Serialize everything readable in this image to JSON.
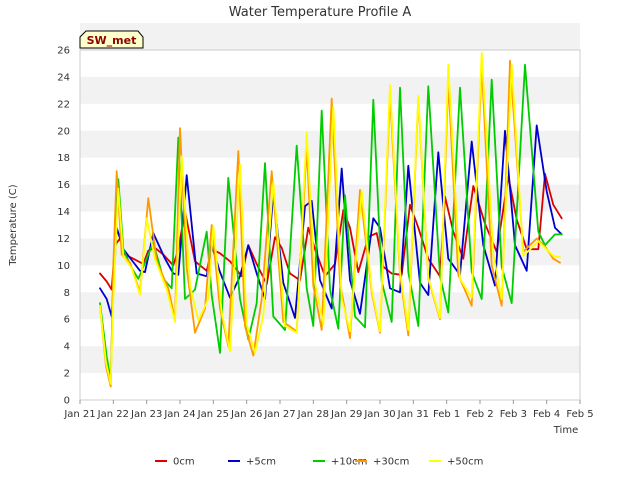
{
  "chart_data": {
    "type": "line",
    "title": "Water Temperature Profile A",
    "badge": "SW_met",
    "xlabel": "Time",
    "ylabel": "Temperature (C)",
    "ylim": [
      0,
      26
    ],
    "yticks": [
      0,
      2,
      4,
      6,
      8,
      10,
      12,
      14,
      16,
      18,
      20,
      22,
      24,
      26
    ],
    "xlim": [
      0,
      15
    ],
    "xticks": [
      {
        "value": 0,
        "label": "Jan 21"
      },
      {
        "value": 1,
        "label": "Jan 22"
      },
      {
        "value": 2,
        "label": "Jan 23"
      },
      {
        "value": 3,
        "label": "Jan 24"
      },
      {
        "value": 4,
        "label": "Jan 25"
      },
      {
        "value": 5,
        "label": "Jan 26"
      },
      {
        "value": 6,
        "label": "Jan 27"
      },
      {
        "value": 7,
        "label": "Jan 28"
      },
      {
        "value": 8,
        "label": "Jan 29"
      },
      {
        "value": 9,
        "label": "Jan 30"
      },
      {
        "value": 10,
        "label": "Jan 31"
      },
      {
        "value": 11,
        "label": "Feb 1"
      },
      {
        "value": 12,
        "label": "Feb 2"
      },
      {
        "value": 13,
        "label": "Feb 3"
      },
      {
        "value": 14,
        "label": "Feb 4"
      },
      {
        "value": 15,
        "label": "Feb 5"
      }
    ],
    "grid": "horizontal bands",
    "legend_position": "bottom",
    "series": [
      {
        "name": "0cm",
        "color": "#dd0000",
        "x": [
          0.6,
          0.8,
          0.95,
          1.05,
          1.2,
          1.35,
          1.6,
          1.9,
          2.05,
          2.25,
          2.5,
          2.8,
          2.95,
          3.15,
          3.45,
          3.8,
          3.95,
          4.2,
          4.5,
          4.85,
          5.05,
          5.3,
          5.6,
          5.85,
          6.05,
          6.3,
          6.6,
          6.85,
          7.05,
          7.35,
          7.65,
          7.9,
          8.1,
          8.35,
          8.65,
          8.9,
          9.1,
          9.35,
          9.65,
          9.9,
          10.15,
          10.45,
          10.8,
          10.95,
          11.2,
          11.5,
          11.8,
          12.15,
          12.5,
          12.85,
          13.1,
          13.4,
          13.75,
          13.95,
          14.2,
          14.45
        ],
        "y": [
          9.4,
          8.8,
          8.2,
          11.5,
          12,
          10.8,
          10.5,
          10.1,
          11.1,
          11.3,
          10.8,
          10,
          11.2,
          14,
          10.3,
          9.6,
          11.2,
          10.9,
          10.3,
          9.2,
          11.5,
          10.1,
          8.6,
          12.1,
          11.3,
          9.4,
          8.9,
          12.8,
          11.2,
          9.2,
          10.1,
          14.1,
          12.8,
          9.5,
          12.1,
          12.4,
          9.9,
          9.4,
          9.3,
          14.5,
          12.8,
          10.5,
          9.2,
          15.1,
          12.5,
          10.5,
          15.9,
          13.1,
          11,
          16.6,
          13.4,
          11.2,
          11.2,
          16.8,
          14.5,
          13.5
        ]
      },
      {
        "name": "+5cm",
        "color": "#0000cc",
        "x": [
          0.6,
          0.8,
          0.95,
          1.1,
          1.3,
          1.55,
          1.8,
          1.95,
          2.2,
          2.55,
          2.8,
          2.95,
          3.2,
          3.5,
          3.8,
          3.95,
          4.2,
          4.5,
          4.8,
          5.05,
          5.3,
          5.55,
          5.8,
          6.1,
          6.45,
          6.75,
          6.95,
          7.2,
          7.55,
          7.85,
          8.1,
          8.4,
          8.8,
          9,
          9.3,
          9.6,
          9.85,
          10.2,
          10.45,
          10.75,
          11.05,
          11.4,
          11.75,
          12.1,
          12.45,
          12.75,
          13.05,
          13.4,
          13.7,
          14,
          14.25,
          14.45
        ],
        "y": [
          8.3,
          7.5,
          6.2,
          12.8,
          11.2,
          10.4,
          9.6,
          9.5,
          12.4,
          10.5,
          9.4,
          9.3,
          16.7,
          9.4,
          9.2,
          11.5,
          9.5,
          7.6,
          9.2,
          11.5,
          9.4,
          7.5,
          15.4,
          8.7,
          6.1,
          14.4,
          14.8,
          8.9,
          6.8,
          17.2,
          8.9,
          6.4,
          13.5,
          12.8,
          8.3,
          8,
          17.4,
          8.7,
          7.8,
          18.4,
          10.5,
          9.3,
          19.2,
          11.5,
          8.5,
          20,
          11.5,
          9.6,
          20.4,
          15.5,
          12.8,
          12.3
        ]
      },
      {
        "name": "+10cm",
        "color": "#00cc00",
        "x": [
          0.6,
          0.8,
          0.92,
          1.0,
          1.15,
          1.3,
          1.55,
          1.75,
          1.95,
          2.2,
          2.5,
          2.75,
          2.95,
          3.15,
          3.45,
          3.8,
          3.95,
          4.2,
          4.45,
          4.8,
          5.05,
          5.3,
          5.55,
          5.8,
          6.15,
          6.5,
          6.8,
          7,
          7.25,
          7.5,
          7.75,
          7.95,
          8.25,
          8.55,
          8.8,
          9.05,
          9.35,
          9.6,
          9.85,
          10.15,
          10.45,
          10.8,
          11.05,
          11.4,
          11.75,
          12.05,
          12.35,
          12.65,
          12.95,
          13.35,
          13.75,
          13.95,
          14.25,
          14.45
        ],
        "y": [
          7.2,
          3.2,
          1.5,
          8.8,
          16.4,
          11.2,
          9.8,
          9,
          10.2,
          11.7,
          9,
          8.3,
          19.5,
          7.5,
          8.2,
          12.5,
          7.8,
          3.5,
          16.5,
          7.5,
          4.5,
          7.2,
          17.6,
          6.2,
          5.2,
          18.9,
          8.3,
          5.5,
          21.5,
          8.2,
          5.3,
          15.2,
          6.2,
          5.4,
          22.3,
          8.8,
          5.8,
          23.2,
          9.5,
          5.5,
          23.3,
          9.2,
          6.5,
          23.2,
          9.5,
          7.5,
          23.8,
          9.9,
          7.2,
          24.9,
          12.5,
          11.5,
          12.3,
          12.3
        ]
      },
      {
        "name": "+30cm",
        "color": "#ff9900",
        "x": [
          0.6,
          0.78,
          0.92,
          1.0,
          1.1,
          1.25,
          1.5,
          1.8,
          2.05,
          2.3,
          2.65,
          2.85,
          3.0,
          3.2,
          3.45,
          3.75,
          3.95,
          4.2,
          4.45,
          4.75,
          4.95,
          5.2,
          5.45,
          5.75,
          6.1,
          6.5,
          6.8,
          7.0,
          7.25,
          7.55,
          7.8,
          8.1,
          8.4,
          8.75,
          9.0,
          9.3,
          9.6,
          9.85,
          10.15,
          10.45,
          10.8,
          11.05,
          11.35,
          11.75,
          12.05,
          12.35,
          12.65,
          12.9,
          13.3,
          13.7,
          13.95,
          14.2,
          14.4
        ],
        "y": [
          7,
          2.5,
          1,
          10,
          17,
          10.8,
          10.2,
          8,
          15,
          10.3,
          8.3,
          6,
          20.2,
          9.8,
          5,
          6.8,
          13,
          6.8,
          4,
          18.5,
          5.5,
          3.3,
          7.5,
          17,
          5.8,
          5.1,
          18.8,
          8.5,
          5.2,
          22.4,
          8.7,
          4.6,
          15.6,
          8,
          5,
          22.6,
          9.3,
          4.8,
          22.4,
          9,
          6,
          23.7,
          9.3,
          7,
          24.9,
          10,
          7,
          25.2,
          11,
          12,
          11.4,
          10.5,
          10.2
        ]
      },
      {
        "name": "+50cm",
        "color": "#ffff00",
        "x": [
          0.6,
          0.78,
          0.92,
          1.0,
          1.15,
          1.3,
          1.55,
          1.8,
          2.0,
          2.25,
          2.6,
          2.85,
          3.05,
          3.3,
          3.55,
          3.85,
          4.0,
          4.25,
          4.5,
          4.8,
          5.0,
          5.25,
          5.5,
          5.8,
          6.15,
          6.5,
          6.8,
          7.05,
          7.3,
          7.6,
          7.85,
          8.1,
          8.45,
          8.75,
          9.0,
          9.3,
          9.6,
          9.85,
          10.15,
          10.45,
          10.8,
          11.05,
          11.4,
          11.75,
          12.05,
          12.4,
          12.65,
          12.95,
          13.3,
          13.75,
          13.95,
          14.2,
          14.4
        ],
        "y": [
          7,
          2.8,
          1.2,
          7.5,
          15.7,
          10.7,
          9.8,
          7.8,
          13.5,
          10.5,
          8.2,
          5.8,
          18.1,
          8.5,
          5.9,
          7.5,
          12.9,
          6.5,
          3.6,
          17.5,
          5.6,
          3.5,
          6.3,
          16.2,
          5.5,
          5,
          19.9,
          8.7,
          5.6,
          21.8,
          7.5,
          5.1,
          15.5,
          8.2,
          5.1,
          23.4,
          9.6,
          5.2,
          22.6,
          9.1,
          6.1,
          24.9,
          9,
          7.6,
          25.8,
          10.8,
          7.5,
          24.9,
          10.7,
          11.8,
          11.3,
          10.7,
          10.6
        ]
      }
    ]
  }
}
